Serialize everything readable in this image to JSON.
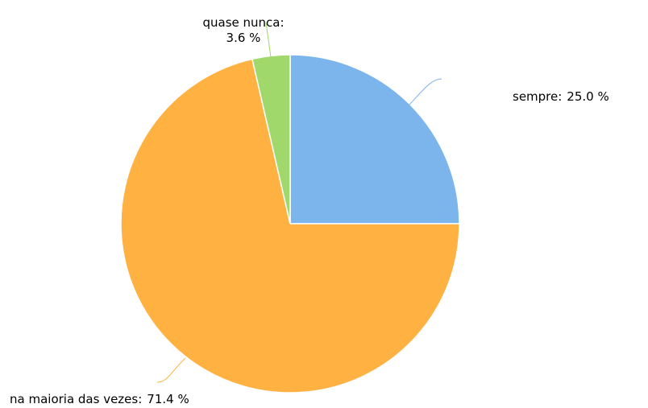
{
  "chart_data": {
    "type": "pie",
    "categories": [
      "sempre:",
      "na maioria das vezes:",
      "quase nunca:"
    ],
    "values": [
      25.0,
      71.4,
      3.6
    ],
    "value_labels": [
      "25.0 %",
      "71.4 %",
      "3.6 %"
    ],
    "colors": [
      "#7cb5ec",
      "#ffb142",
      "#a0d86c"
    ]
  }
}
